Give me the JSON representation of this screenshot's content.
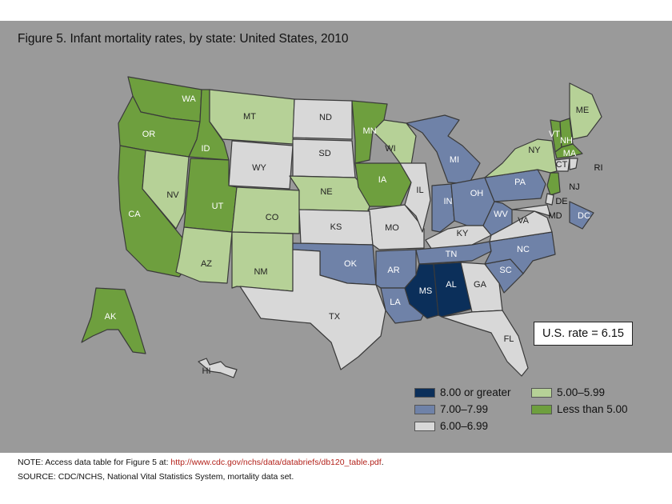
{
  "title": "Figure 5. Infant mortality rates, by state: United States, 2010",
  "us_rate": "U.S. rate = 6.15",
  "colors": {
    "c8": "#0b2f5a",
    "c7": "#6f82a8",
    "c6": "#d8d8d8",
    "c5": "#b6d197",
    "c4": "#6e9f3e",
    "border": "#3a3a3a",
    "background": "#9a9a9a"
  },
  "legend": [
    {
      "key": "c8",
      "label": "8.00 or greater"
    },
    {
      "key": "c7",
      "label": "7.00–7.99"
    },
    {
      "key": "c6",
      "label": "6.00–6.99"
    },
    {
      "key": "c5",
      "label": "5.00–5.99"
    },
    {
      "key": "c4",
      "label": "Less than 5.00"
    }
  ],
  "states": {
    "WA": "c4",
    "OR": "c4",
    "CA": "c4",
    "ID": "c4",
    "UT": "c4",
    "MN": "c4",
    "IA": "c4",
    "MT": "c5",
    "NV": "c5",
    "AZ": "c5",
    "CO": "c5",
    "NM": "c5",
    "NE": "c5",
    "WI": "c5",
    "NY": "c5",
    "ME": "c5",
    "AK": "c4",
    "VT": "c4",
    "NH": "c4",
    "MA": "c4",
    "NJ": "c4",
    "ND": "c6",
    "SD": "c6",
    "WY": "c6",
    "KS": "c6",
    "MO": "c6",
    "IL": "c6",
    "TX": "c6",
    "KY": "c6",
    "GA": "c6",
    "FL": "c6",
    "HI": "c6",
    "VA": "c6",
    "MD": "c6",
    "CT": "c6",
    "RI": "c6",
    "DE": "c6",
    "MI": "c7",
    "IN": "c7",
    "OH": "c7",
    "PA": "c7",
    "WV": "c7",
    "OK": "c7",
    "AR": "c7",
    "TN": "c7",
    "LA": "c7",
    "NC": "c7",
    "SC": "c7",
    "DC": "c7",
    "MS": "c8",
    "AL": "c8"
  },
  "note_prefix": "NOTE: Access data table for Figure 5 at: ",
  "note_link": "http://www.cdc.gov/nchs/data/databriefs/db120_table.pdf",
  "note_suffix": ".",
  "source": "SOURCE: CDC/NCHS, National Vital Statistics System, mortality data set."
}
